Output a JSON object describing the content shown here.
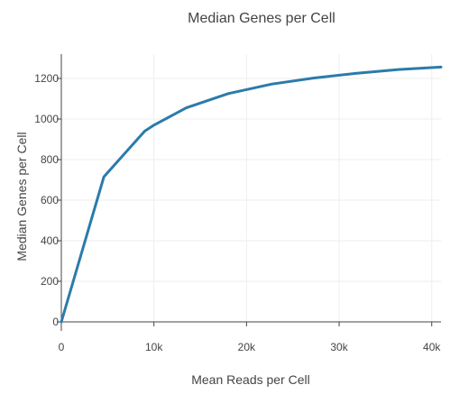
{
  "chart_data": {
    "type": "line",
    "title": "Median Genes per Cell",
    "xlabel": "Mean Reads per Cell",
    "ylabel": "Median Genes per Cell",
    "xlim": [
      0,
      41000
    ],
    "ylim": [
      0,
      1320
    ],
    "x_ticks": [
      {
        "value": 0,
        "label": "0"
      },
      {
        "value": 10000,
        "label": "10k"
      },
      {
        "value": 20000,
        "label": "20k"
      },
      {
        "value": 30000,
        "label": "30k"
      },
      {
        "value": 40000,
        "label": "40k"
      }
    ],
    "y_ticks": [
      {
        "value": 0,
        "label": "0"
      },
      {
        "value": 200,
        "label": "200"
      },
      {
        "value": 400,
        "label": "400"
      },
      {
        "value": 600,
        "label": "600"
      },
      {
        "value": 800,
        "label": "800"
      },
      {
        "value": 1000,
        "label": "1000"
      },
      {
        "value": 1200,
        "label": "1200"
      }
    ],
    "grid": true,
    "legend": "none",
    "series": [
      {
        "color": "#2b7bab",
        "points": [
          {
            "x": 0,
            "y": 0
          },
          {
            "x": 4600,
            "y": 715
          },
          {
            "x": 9000,
            "y": 940
          },
          {
            "x": 10000,
            "y": 970
          },
          {
            "x": 13500,
            "y": 1055
          },
          {
            "x": 18000,
            "y": 1125
          },
          {
            "x": 22700,
            "y": 1172
          },
          {
            "x": 27200,
            "y": 1202
          },
          {
            "x": 31800,
            "y": 1225
          },
          {
            "x": 36400,
            "y": 1244
          },
          {
            "x": 41000,
            "y": 1256
          }
        ]
      }
    ]
  }
}
